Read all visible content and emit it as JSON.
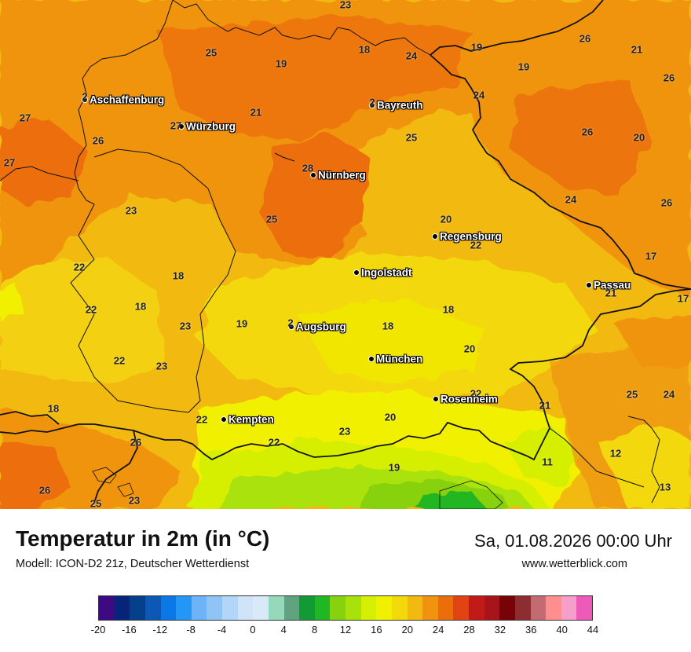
{
  "map": {
    "cities": [
      {
        "name": "Aschaffenburg"
      },
      {
        "name": "Bayreuth"
      },
      {
        "name": "Würzburg"
      },
      {
        "name": "Nürnberg"
      },
      {
        "name": "Regensburg"
      },
      {
        "name": "Ingolstadt"
      },
      {
        "name": "Passau"
      },
      {
        "name": "Augsburg"
      },
      {
        "name": "München"
      },
      {
        "name": "Rosenheim"
      },
      {
        "name": "Kempten"
      }
    ],
    "temperature_labels": [
      "23",
      "25",
      "19",
      "18",
      "24",
      "19",
      "26",
      "21",
      "19",
      "26",
      "2",
      "27",
      "27",
      "21",
      "24",
      "26",
      "20",
      "2",
      "27",
      "25",
      "26",
      "28",
      "23",
      "25",
      "20",
      "24",
      "26",
      "22",
      "17",
      "22",
      "18",
      "22",
      "18",
      "23",
      "19",
      "2",
      "18",
      "18",
      "21",
      "17",
      "22",
      "23",
      "20",
      "18",
      "22",
      "20",
      "21",
      "25",
      "24",
      "22",
      "26",
      "22",
      "23",
      "11",
      "12",
      "19",
      "13",
      "26",
      "25",
      "23"
    ]
  },
  "footer": {
    "title": "Temperatur in 2m (in °C)",
    "model": "Modell: ICON-D2 21z, Deutscher Wetterdienst",
    "datetime": "Sa, 01.08.2026 00:00 Uhr",
    "website": "www.wetterblick.com"
  },
  "legend": {
    "colors": [
      "#3d0a84",
      "#06247a",
      "#034089",
      "#0b59b5",
      "#0a78e6",
      "#2497f6",
      "#6cb3f7",
      "#8fc4f5",
      "#b2d6f7",
      "#cfe3f9",
      "#d8e9fa",
      "#94d9bc",
      "#5fa47f",
      "#129a34",
      "#21b623",
      "#87d20f",
      "#a9e20a",
      "#d6ef05",
      "#f0f000",
      "#f3d80a",
      "#f2ba10",
      "#f0930f",
      "#ec6e0a",
      "#e14314",
      "#c21a16",
      "#a7151a",
      "#780208",
      "#8d2d32",
      "#c36a72",
      "#ff8e8e",
      "#f79fcb",
      "#ee5ab7"
    ],
    "labels": [
      "-20",
      "-16",
      "-12",
      "-8",
      "-4",
      "0",
      "4",
      "8",
      "12",
      "16",
      "20",
      "24",
      "28",
      "32",
      "36",
      "40",
      "44"
    ]
  }
}
